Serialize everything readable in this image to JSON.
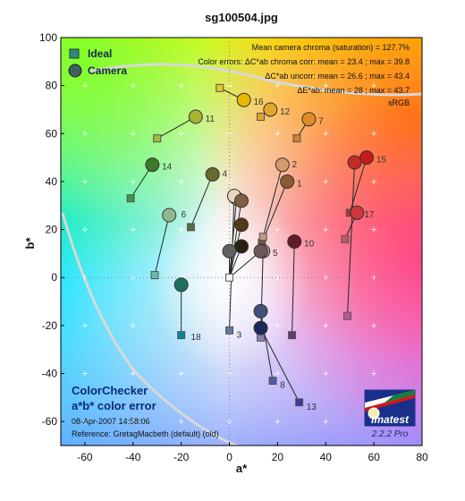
{
  "title": "sg100504.jpg",
  "info": {
    "line1": "Mean camera chroma (saturation) = 127.7%",
    "line2": "Color errors:  ΔC*ab chroma corr:  mean = 23.4 ;  max = 39.8",
    "line3": "ΔC*ab uncorr:  mean = 26.6 ;  max = 43.4",
    "line4": "ΔE*ab:  mean = 28 ;  max = 43.7",
    "line5": "sRGB"
  },
  "legend": {
    "ideal": "Ideal",
    "camera": "Camera"
  },
  "footer": {
    "line1": "ColorChecker",
    "line2": "a*b* color error",
    "line3": "08-Apr-2007 14:58:06",
    "line4": "Reference: GretagMacbeth (default) (old)"
  },
  "logo": {
    "name": "Imatest",
    "version": "2.2.2  Pro"
  },
  "colors": {
    "ideal_edge": "#555555",
    "camera_edge": "#333333",
    "gamut_line": "#d8d8d8",
    "text_blue": "#0a2a7a"
  },
  "chart_data": {
    "type": "scatter",
    "title": "sg100504.jpg",
    "xlabel": "a*",
    "ylabel": "b*",
    "xlim": [
      -70,
      80
    ],
    "ylim": [
      -70,
      100
    ],
    "xticks": [
      -60,
      -40,
      -20,
      0,
      20,
      40,
      60,
      80
    ],
    "yticks": [
      -60,
      -40,
      -20,
      0,
      20,
      40,
      60,
      80,
      100
    ],
    "grid": "dotted crosses",
    "legend_position": "top-left",
    "series": [
      {
        "name": "Ideal",
        "patches": [
          {
            "id": 1,
            "x": 13.5,
            "y": 14.5,
            "color": "#73523f"
          },
          {
            "id": 2,
            "x": 14,
            "y": 17,
            "color": "#c29682"
          },
          {
            "id": 3,
            "x": 0,
            "y": -22,
            "color": "#627a9d"
          },
          {
            "id": 4,
            "x": -16,
            "y": 21,
            "color": "#576c43"
          },
          {
            "id": 5,
            "x": 13,
            "y": -25,
            "color": "#8580b1"
          },
          {
            "id": 6,
            "x": -31,
            "y": 1,
            "color": "#67bdaa"
          },
          {
            "id": 7,
            "x": 28,
            "y": 58,
            "color": "#d67e2c"
          },
          {
            "id": 8,
            "x": 18,
            "y": -43,
            "color": "#505ba6"
          },
          {
            "id": 9,
            "x": 48,
            "y": 16,
            "color": "#c15a63"
          },
          {
            "id": 10,
            "x": 26,
            "y": -24,
            "color": "#5e3c6c"
          },
          {
            "id": 11,
            "x": -30,
            "y": 58,
            "color": "#9dbc40"
          },
          {
            "id": 12,
            "x": 13,
            "y": 67,
            "color": "#e0a32e"
          },
          {
            "id": 13,
            "x": 29,
            "y": -52,
            "color": "#383d96"
          },
          {
            "id": 14,
            "x": -41,
            "y": 33,
            "color": "#469449"
          },
          {
            "id": 15,
            "x": 50,
            "y": 27,
            "color": "#af363c"
          },
          {
            "id": 16,
            "x": -4,
            "y": 79,
            "color": "#e7c71f"
          },
          {
            "id": 17,
            "x": 49,
            "y": -16,
            "color": "#bb5695"
          },
          {
            "id": 18,
            "x": -20,
            "y": -24,
            "color": "#0885a1"
          },
          {
            "id": 19,
            "x": 0,
            "y": 0,
            "color": "#f3f3f2"
          }
        ]
      },
      {
        "name": "Camera",
        "patches": [
          {
            "id": 1,
            "x": 24,
            "y": 40,
            "color": "#8a5a30"
          },
          {
            "id": 2,
            "x": 22,
            "y": 47,
            "color": "#d49a6a"
          },
          {
            "id": 3,
            "x": 3,
            "y": 33,
            "color": "#c8b090"
          },
          {
            "id": 4,
            "x": -7,
            "y": 43,
            "color": "#6a6a2a"
          },
          {
            "id": 5,
            "x": 14,
            "y": 11,
            "color": "#a09090"
          },
          {
            "id": 6,
            "x": -25,
            "y": 26,
            "color": "#90b890"
          },
          {
            "id": 7,
            "x": 33,
            "y": 66,
            "color": "#e08a28"
          },
          {
            "id": 8,
            "x": 13,
            "y": -14,
            "color": "#405078"
          },
          {
            "id": 9,
            "x": 53,
            "y": 27,
            "color": "#d03840"
          },
          {
            "id": 10,
            "x": 27,
            "y": 15,
            "color": "#601a2a"
          },
          {
            "id": 11,
            "x": -14,
            "y": 67,
            "color": "#a8b430"
          },
          {
            "id": 12,
            "x": 17,
            "y": 70,
            "color": "#e0a828"
          },
          {
            "id": 13,
            "x": 13,
            "y": -21,
            "color": "#1a2a5a"
          },
          {
            "id": 14,
            "x": -32,
            "y": 47,
            "color": "#3c7828"
          },
          {
            "id": 15,
            "x": 57,
            "y": 50,
            "color": "#c81818"
          },
          {
            "id": 16,
            "x": 6,
            "y": 74,
            "color": "#e8b800"
          },
          {
            "id": 17,
            "x": 52,
            "y": 48,
            "color": "#c82828"
          },
          {
            "id": 18,
            "x": -20,
            "y": -3,
            "color": "#207060"
          },
          {
            "id": 19,
            "x": 2,
            "y": 34,
            "color": "#e8d8c0"
          },
          {
            "id": 20,
            "x": 5,
            "y": 32,
            "color": "#806040"
          },
          {
            "id": 21,
            "x": 5,
            "y": 22,
            "color": "#503818"
          },
          {
            "id": 22,
            "x": 5,
            "y": 13,
            "color": "#2a2010"
          },
          {
            "id": 23,
            "x": 0,
            "y": 11,
            "color": "#606060"
          },
          {
            "id": 24,
            "x": 13,
            "y": 11,
            "color": "#705858"
          }
        ]
      }
    ],
    "pairs": [
      [
        1,
        1
      ],
      [
        2,
        2
      ],
      [
        3,
        19
      ],
      [
        4,
        4
      ],
      [
        5,
        5
      ],
      [
        6,
        6
      ],
      [
        7,
        7
      ],
      [
        8,
        8
      ],
      [
        9,
        9
      ],
      [
        10,
        10
      ],
      [
        11,
        11
      ],
      [
        12,
        12
      ],
      [
        13,
        13
      ],
      [
        14,
        14
      ],
      [
        15,
        15
      ],
      [
        16,
        16
      ],
      [
        17,
        17
      ],
      [
        18,
        18
      ],
      [
        19,
        20
      ],
      [
        19,
        21
      ],
      [
        19,
        22
      ],
      [
        19,
        23
      ],
      [
        19,
        24
      ],
      [
        19,
        3
      ]
    ],
    "labels": [
      {
        "text": "1",
        "x": 28,
        "y": 38
      },
      {
        "text": "2",
        "x": 26,
        "y": 46
      },
      {
        "text": "3",
        "x": 3,
        "y": -25
      },
      {
        "text": "4",
        "x": -3,
        "y": 42
      },
      {
        "text": "5",
        "x": 18,
        "y": 9
      },
      {
        "text": "6",
        "x": -20,
        "y": 25
      },
      {
        "text": "7",
        "x": 37,
        "y": 64
      },
      {
        "text": "8",
        "x": 21,
        "y": -46
      },
      {
        "text": "10",
        "x": 31,
        "y": 13
      },
      {
        "text": "11",
        "x": -10,
        "y": 65
      },
      {
        "text": "12",
        "x": 21,
        "y": 68
      },
      {
        "text": "13",
        "x": 32,
        "y": -55
      },
      {
        "text": "14",
        "x": -28,
        "y": 45
      },
      {
        "text": "15",
        "x": 61,
        "y": 48
      },
      {
        "text": "16",
        "x": 10,
        "y": 72
      },
      {
        "text": "17",
        "x": 56,
        "y": 25
      },
      {
        "text": "18",
        "x": -16,
        "y": -26
      }
    ]
  }
}
